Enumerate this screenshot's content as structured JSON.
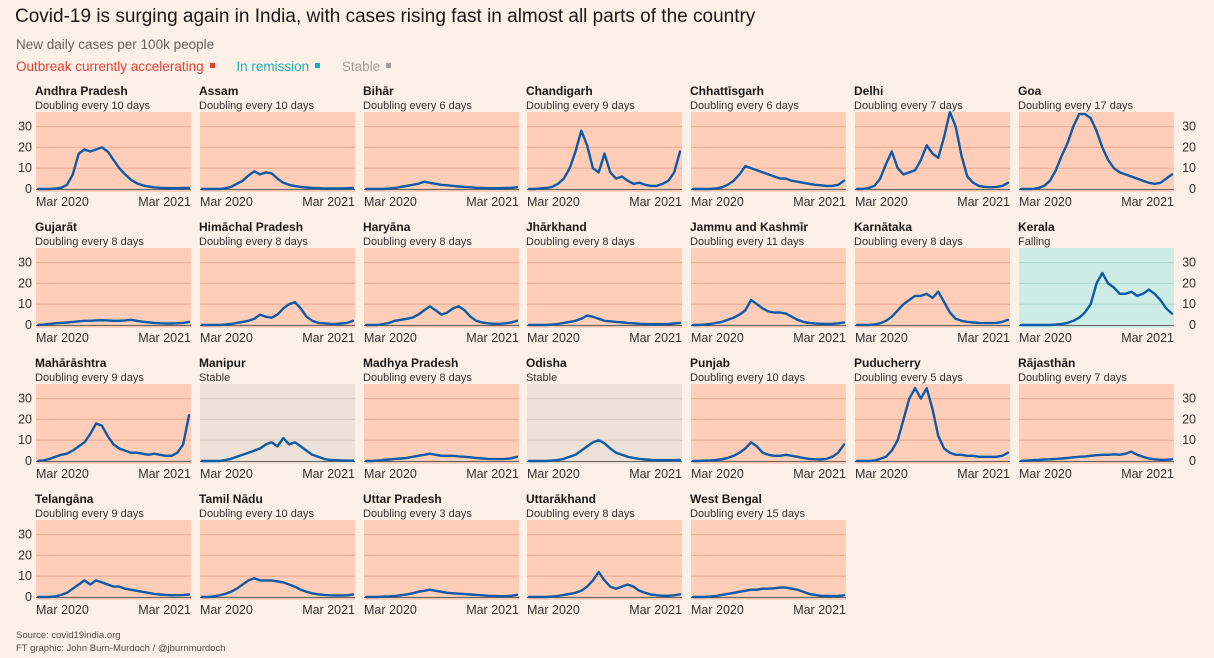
{
  "title": "Covid-19 is surging again in India, with cases rising fast in almost all parts of the country",
  "subtitle": "New daily cases per 100k people",
  "legend": [
    {
      "label": "Outbreak currently accelerating",
      "status": "accelerating",
      "color": "#e8403a"
    },
    {
      "label": "In remission",
      "status": "remission",
      "color": "#18b5b8"
    },
    {
      "label": "Stable",
      "status": "stable",
      "color": "#a39e99"
    }
  ],
  "colors": {
    "accelerating_bg": "#ffcdb8",
    "remission_bg": "#cdece3",
    "stable_bg": "#ece1d6",
    "line": "#0d5aa7",
    "gridline": "#f4a991"
  },
  "source": "Source: covid19india.org",
  "credit": "FT graphic: John Burn-Murdoch / @jburnmurdoch",
  "chart_data": {
    "type": "line",
    "layout": "small-multiples",
    "x_start_label": "Mar 2020",
    "x_end_label": "Mar 2021",
    "x_range": [
      "2020-03",
      "2021-04"
    ],
    "ylim": [
      0,
      37
    ],
    "yticks": [
      0,
      10,
      20,
      30
    ],
    "grid": true,
    "panels": [
      {
        "name": "Andhra Pradesh",
        "status": "accelerating",
        "note": "Doubling every 10 days",
        "values": [
          0,
          0,
          0,
          0.2,
          0.6,
          2,
          7,
          17,
          19,
          18,
          19,
          20,
          18,
          14,
          10,
          7,
          4.5,
          2.8,
          1.8,
          1.2,
          0.8,
          0.6,
          0.5,
          0.4,
          0.4,
          0.5,
          0.5
        ]
      },
      {
        "name": "Assam",
        "status": "accelerating",
        "note": "Doubling every 10 days",
        "values": [
          0,
          0,
          0,
          0,
          0.3,
          1,
          2.5,
          4,
          6.5,
          8.5,
          7,
          8,
          7.5,
          5,
          3,
          2,
          1.4,
          1,
          0.7,
          0.5,
          0.4,
          0.3,
          0.3,
          0.3,
          0.3,
          0.4,
          0.5
        ]
      },
      {
        "name": "Bihār",
        "status": "accelerating",
        "note": "Doubling every 6 days",
        "values": [
          0,
          0,
          0,
          0,
          0.2,
          0.5,
          1,
          1.5,
          2,
          2.5,
          3.5,
          3,
          2.5,
          2,
          1.8,
          1.5,
          1.2,
          1,
          0.8,
          0.6,
          0.5,
          0.4,
          0.4,
          0.4,
          0.5,
          0.6,
          0.8
        ]
      },
      {
        "name": "Chandigarh",
        "status": "accelerating",
        "note": "Doubling every 9 days",
        "values": [
          0,
          0,
          0.3,
          0.5,
          1,
          2.5,
          5,
          10,
          18,
          28,
          21,
          10,
          8,
          17,
          8,
          5,
          6,
          4,
          2.5,
          3,
          2,
          1.5,
          1.5,
          2.5,
          4,
          8,
          18
        ]
      },
      {
        "name": "Chhattīsgarh",
        "status": "accelerating",
        "note": "Doubling every 6 days",
        "values": [
          0,
          0,
          0,
          0,
          0.3,
          0.8,
          2,
          4,
          7,
          11,
          10,
          9,
          8,
          7,
          6,
          5,
          5,
          4,
          3.5,
          3,
          2.5,
          2,
          1.8,
          1.5,
          1.5,
          2,
          4
        ]
      },
      {
        "name": "Delhi",
        "status": "accelerating",
        "note": "Doubling every 7 days",
        "values": [
          0,
          0,
          0.5,
          1.5,
          5,
          12,
          18,
          10,
          7,
          8,
          9,
          14,
          21,
          17,
          15,
          25,
          37,
          30,
          16,
          6,
          3,
          1.5,
          1,
          0.8,
          1,
          1.5,
          3
        ]
      },
      {
        "name": "Goa",
        "status": "accelerating",
        "note": "Doubling every 17 days",
        "values": [
          0,
          0,
          0,
          0.5,
          1.5,
          4,
          9,
          16,
          22,
          30,
          36,
          36,
          34,
          28,
          20,
          14,
          10,
          8,
          7,
          6,
          5,
          4,
          3,
          2.5,
          3,
          5,
          7
        ]
      },
      {
        "name": "Gujarāt",
        "status": "accelerating",
        "note": "Doubling every 8 days",
        "values": [
          0,
          0.2,
          0.5,
          0.8,
          1,
          1.2,
          1.5,
          1.8,
          2,
          2,
          2.2,
          2.3,
          2.2,
          2,
          2,
          2.2,
          2.5,
          2,
          1.6,
          1.3,
          1,
          0.8,
          0.7,
          0.7,
          0.8,
          1,
          1.5
        ]
      },
      {
        "name": "Himāchal Pradesh",
        "status": "accelerating",
        "note": "Doubling every 8 days",
        "values": [
          0,
          0,
          0,
          0,
          0.2,
          0.5,
          1,
          1.5,
          2,
          3,
          5,
          4,
          3.5,
          5,
          8,
          10,
          11,
          8,
          4,
          2,
          1,
          0.8,
          0.6,
          0.5,
          0.7,
          1,
          2
        ]
      },
      {
        "name": "Haryāna",
        "status": "accelerating",
        "note": "Doubling every 8 days",
        "values": [
          0,
          0,
          0,
          0.5,
          1,
          2,
          2.5,
          3,
          3.5,
          5,
          7,
          9,
          7,
          5,
          6,
          8,
          9,
          7,
          4,
          2,
          1.2,
          0.8,
          0.6,
          0.6,
          0.8,
          1.2,
          2
        ]
      },
      {
        "name": "Jhārkhand",
        "status": "accelerating",
        "note": "Doubling every 8 days",
        "values": [
          0,
          0,
          0,
          0,
          0.2,
          0.5,
          1,
          1.5,
          2,
          3,
          4.5,
          4,
          3,
          2,
          1.8,
          1.5,
          1.3,
          1,
          0.8,
          0.6,
          0.5,
          0.4,
          0.4,
          0.4,
          0.5,
          0.7,
          1
        ]
      },
      {
        "name": "Jammu and Kashmīr",
        "status": "accelerating",
        "note": "Doubling every 11 days",
        "values": [
          0,
          0,
          0.2,
          0.5,
          1,
          1.5,
          2.5,
          3.5,
          5,
          7,
          12,
          10,
          8,
          6.5,
          6,
          6,
          5.5,
          4,
          2.5,
          1.5,
          1,
          0.7,
          0.6,
          0.5,
          0.6,
          0.8,
          1.2
        ]
      },
      {
        "name": "Karnātaka",
        "status": "accelerating",
        "note": "Doubling every 8 days",
        "values": [
          0,
          0,
          0,
          0.3,
          0.8,
          2,
          4,
          7,
          10,
          12,
          14,
          14,
          15,
          13,
          16,
          11,
          6,
          3,
          2,
          1.5,
          1.2,
          1,
          0.9,
          0.9,
          1,
          1.5,
          2.5
        ]
      },
      {
        "name": "Kerala",
        "status": "remission",
        "note": "Falling",
        "values": [
          0,
          0,
          0,
          0,
          0,
          0,
          0.2,
          0.5,
          1,
          2,
          3.5,
          6,
          10,
          20,
          25,
          20,
          18,
          15,
          15,
          16,
          14,
          15,
          17,
          15,
          12,
          8,
          5.5
        ]
      },
      {
        "name": "Mahārāshtra",
        "status": "accelerating",
        "note": "Doubling every 9 days",
        "values": [
          0,
          0.3,
          1,
          2,
          3,
          3.5,
          5,
          7,
          9,
          13,
          18,
          17,
          12,
          8,
          6,
          5,
          4,
          4,
          3.5,
          3,
          3.5,
          3,
          2.5,
          2.5,
          4,
          8,
          22
        ]
      },
      {
        "name": "Manipur",
        "status": "stable",
        "note": "Stable",
        "values": [
          0,
          0,
          0,
          0,
          0.5,
          1,
          2,
          3,
          4,
          5,
          6,
          8,
          9,
          7,
          11,
          8,
          9,
          7,
          5,
          3,
          2,
          1,
          0.5,
          0.4,
          0.3,
          0.2,
          0.2
        ]
      },
      {
        "name": "Madhya Pradesh",
        "status": "accelerating",
        "note": "Doubling every 8 days",
        "values": [
          0,
          0,
          0.2,
          0.5,
          0.7,
          1,
          1.2,
          1.5,
          2,
          2.5,
          3,
          3.5,
          3,
          2.5,
          2.5,
          2.5,
          2.2,
          2,
          1.8,
          1.5,
          1.2,
          1,
          0.9,
          0.9,
          1,
          1.3,
          2
        ]
      },
      {
        "name": "Odisha",
        "status": "stable",
        "note": "Stable",
        "values": [
          0,
          0,
          0,
          0,
          0.2,
          0.5,
          1,
          2,
          3,
          5,
          7,
          9,
          10,
          8.5,
          6,
          4,
          3,
          2,
          1.5,
          1,
          0.7,
          0.5,
          0.4,
          0.4,
          0.4,
          0.4,
          0.5
        ]
      },
      {
        "name": "Punjab",
        "status": "accelerating",
        "note": "Doubling every 10 days",
        "values": [
          0,
          0,
          0.2,
          0.3,
          0.5,
          0.8,
          1.5,
          2.5,
          4,
          6,
          9,
          7,
          4,
          3,
          2.5,
          2.5,
          3,
          2.5,
          2,
          1.5,
          1,
          0.8,
          0.7,
          1,
          2,
          4,
          8
        ]
      },
      {
        "name": "Puducherry",
        "status": "accelerating",
        "note": "Doubling every 5 days",
        "values": [
          0,
          0,
          0,
          0.2,
          1,
          2,
          5,
          10,
          20,
          30,
          35,
          30,
          35,
          25,
          12,
          6,
          4,
          3,
          3,
          2.5,
          2.5,
          2,
          2,
          2,
          2,
          2.5,
          4
        ]
      },
      {
        "name": "Rājasthān",
        "status": "accelerating",
        "note": "Doubling every 7 days",
        "values": [
          0,
          0.2,
          0.4,
          0.5,
          0.7,
          0.8,
          1,
          1.2,
          1.5,
          1.8,
          2,
          2.2,
          2.5,
          2.8,
          3,
          3,
          3.2,
          3,
          3.5,
          4.5,
          3,
          2,
          1.2,
          0.8,
          0.6,
          0.6,
          0.8
        ]
      },
      {
        "name": "Telangāna",
        "status": "accelerating",
        "note": "Doubling every 9 days",
        "values": [
          0,
          0,
          0,
          0.3,
          1,
          2,
          4,
          6,
          8,
          6,
          8,
          7,
          6,
          5,
          5,
          4,
          3.5,
          3,
          2.5,
          2,
          1.5,
          1.2,
          1,
          0.8,
          0.8,
          0.9,
          1.2
        ]
      },
      {
        "name": "Tamil Nādu",
        "status": "accelerating",
        "note": "Doubling every 10 days",
        "values": [
          0,
          0,
          0.3,
          0.8,
          1.5,
          2.5,
          4,
          6,
          8,
          9,
          8,
          8,
          8,
          7.5,
          7,
          6,
          5,
          3.5,
          2.5,
          1.8,
          1.3,
          1,
          0.8,
          0.7,
          0.7,
          0.8,
          1.2
        ]
      },
      {
        "name": "Uttar Pradesh",
        "status": "accelerating",
        "note": "Doubling every 3 days",
        "values": [
          0,
          0,
          0,
          0.2,
          0.3,
          0.5,
          0.8,
          1.2,
          1.8,
          2.5,
          3,
          3.5,
          3,
          2.5,
          2,
          1.8,
          1.6,
          1.4,
          1.2,
          1,
          0.8,
          0.6,
          0.5,
          0.4,
          0.4,
          0.6,
          1
        ]
      },
      {
        "name": "Uttarākhand",
        "status": "accelerating",
        "note": "Doubling every 8 days",
        "values": [
          0,
          0,
          0,
          0,
          0.2,
          0.5,
          1,
          1.5,
          2,
          3,
          5,
          8,
          12,
          8,
          5,
          4,
          5,
          6,
          5,
          3,
          2,
          1.2,
          0.8,
          0.6,
          0.6,
          0.8,
          1.3
        ]
      },
      {
        "name": "West Bengal",
        "status": "accelerating",
        "note": "Doubling every 15 days",
        "values": [
          0,
          0,
          0,
          0.2,
          0.5,
          1,
          1.5,
          2,
          2.5,
          3,
          3.5,
          3.5,
          4,
          4,
          4.2,
          4.5,
          4.5,
          4,
          3.5,
          2.5,
          1.5,
          1,
          0.6,
          0.5,
          0.4,
          0.5,
          0.8
        ]
      }
    ]
  }
}
